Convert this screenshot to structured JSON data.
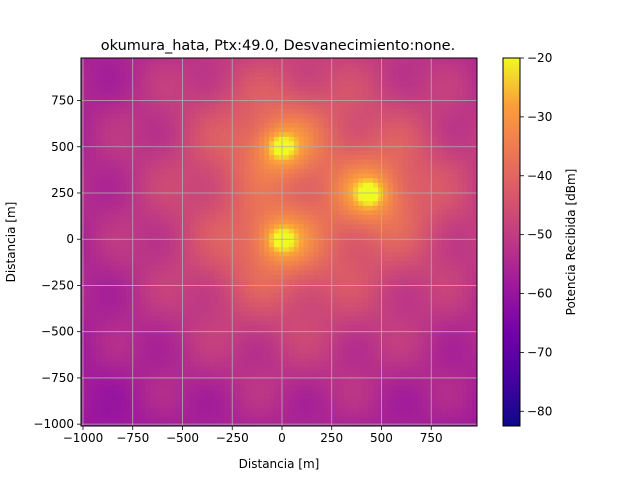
{
  "chart_data": {
    "type": "heatmap",
    "title": "okumura_hata, Ptx:49.0, Desvanecimiento:none.",
    "xlabel": "Distancia [m]",
    "ylabel": "Distancia [m]",
    "xlim": [
      -1010,
      980
    ],
    "ylim": [
      -1010,
      980
    ],
    "xticks": [
      -1000,
      -750,
      -500,
      -250,
      0,
      250,
      500,
      750
    ],
    "yticks": [
      -1000,
      -750,
      -500,
      -250,
      0,
      250,
      500,
      750
    ],
    "x_tick_labels": [
      "−1000",
      "−750",
      "−500",
      "−250",
      "0",
      "250",
      "500",
      "750"
    ],
    "y_tick_labels": [
      "−1000",
      "−750",
      "−500",
      "−250",
      "0",
      "250",
      "500",
      "750"
    ],
    "grid": true,
    "colormap": "plasma",
    "colorbar": {
      "label": "Potencia Recibida [dBm]",
      "range": [
        -82.5,
        -20
      ],
      "ticks": [
        -80,
        -70,
        -60,
        -50,
        -40,
        -30,
        -20
      ],
      "tick_labels": [
        "−80",
        "−70",
        "−60",
        "−50",
        "−40",
        "−30",
        "−20"
      ]
    },
    "transmitters": [
      {
        "x": 0,
        "y": 500
      },
      {
        "x": 440,
        "y": 250
      },
      {
        "x": 0,
        "y": 0
      }
    ],
    "value_range": [
      -82.5,
      -20
    ]
  }
}
